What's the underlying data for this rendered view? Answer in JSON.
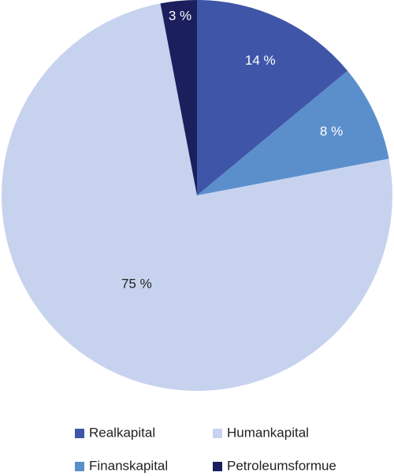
{
  "chart_data": {
    "type": "pie",
    "categories": [
      "Realkapital",
      "Finanskapital",
      "Humankapital",
      "Petroleumsformue"
    ],
    "values": [
      14,
      8,
      75,
      3
    ],
    "value_labels": [
      "14 %",
      "8 %",
      "75 %",
      "3 %"
    ],
    "colors": [
      "#3f56a8",
      "#5b8fcc",
      "#c7d3ee",
      "#1b1f5e"
    ],
    "legend": "bottom"
  }
}
